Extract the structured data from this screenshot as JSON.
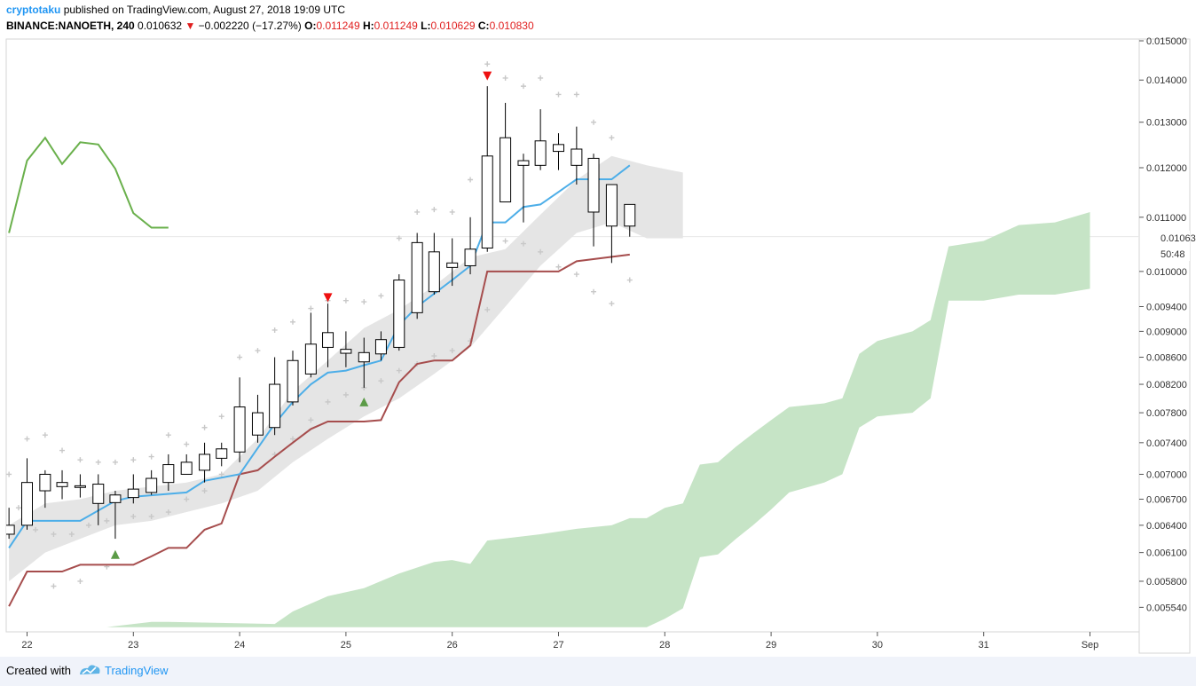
{
  "header": {
    "author": "cryptotaku",
    "published_text": "published on TradingView.com, August 27, 2018 19:09 UTC",
    "symbol": "BINANCE:NANOETH, 240",
    "last": "0.010632",
    "change": "−0.002220 (−17.27%)",
    "o_label": "O:",
    "o_value": "0.011249",
    "h_label": "H:",
    "h_value": "0.011249",
    "l_label": "L:",
    "l_value": "0.010629",
    "c_label": "C:",
    "c_value": "0.010830"
  },
  "footer": {
    "created_with": "Created with",
    "brand": "TradingView"
  },
  "price_label": {
    "price": "0.010632",
    "countdown": "50:48"
  },
  "colors": {
    "conversion": "#4daee8",
    "base": "#a64d4d",
    "lagging": "#6ab04c",
    "cloud_green": "#c6e4c6",
    "cloud_gray": "#e5e5e5",
    "down_marker": "#ee1111",
    "up_marker": "#5b9b47"
  },
  "chart_data": {
    "type": "candlestick",
    "interval": "4h",
    "x_ticks": [
      "22",
      "23",
      "24",
      "25",
      "26",
      "27",
      "28",
      "29",
      "30",
      "31",
      "Sep"
    ],
    "x_tick_positions": [
      22,
      23,
      24,
      25,
      26,
      27,
      28,
      29,
      30,
      31,
      32
    ],
    "y_ticks": [
      0.00554,
      0.0058,
      0.0061,
      0.0064,
      0.0067,
      0.007,
      0.0074,
      0.0078,
      0.0082,
      0.0086,
      0.009,
      0.0094,
      0.01,
      0.011,
      0.012,
      0.013,
      0.014,
      0.015
    ],
    "y_scale": "log",
    "ylim": [
      0.0053,
      0.0151
    ],
    "current_price": 0.010632,
    "candles": [
      {
        "t": 21.83,
        "o": 0.0063,
        "h": 0.0066,
        "l": 0.00625,
        "c": 0.0064
      },
      {
        "t": 22.0,
        "o": 0.0064,
        "h": 0.0072,
        "l": 0.00635,
        "c": 0.0069
      },
      {
        "t": 22.17,
        "o": 0.0068,
        "h": 0.00705,
        "l": 0.0066,
        "c": 0.007
      },
      {
        "t": 22.33,
        "o": 0.00685,
        "h": 0.00705,
        "l": 0.0067,
        "c": 0.0069
      },
      {
        "t": 22.5,
        "o": 0.00686,
        "h": 0.007,
        "l": 0.00672,
        "c": 0.00684
      },
      {
        "t": 22.67,
        "o": 0.00665,
        "h": 0.007,
        "l": 0.0064,
        "c": 0.00688
      },
      {
        "t": 22.83,
        "o": 0.00666,
        "h": 0.0068,
        "l": 0.00625,
        "c": 0.00675
      },
      {
        "t": 23.0,
        "o": 0.00672,
        "h": 0.007,
        "l": 0.00665,
        "c": 0.00682
      },
      {
        "t": 23.17,
        "o": 0.00678,
        "h": 0.00705,
        "l": 0.00675,
        "c": 0.00695
      },
      {
        "t": 23.33,
        "o": 0.0069,
        "h": 0.00725,
        "l": 0.0068,
        "c": 0.00712
      },
      {
        "t": 23.5,
        "o": 0.007,
        "h": 0.00725,
        "l": 0.007,
        "c": 0.00715
      },
      {
        "t": 23.67,
        "o": 0.00705,
        "h": 0.0074,
        "l": 0.0069,
        "c": 0.00725
      },
      {
        "t": 23.83,
        "o": 0.0072,
        "h": 0.0074,
        "l": 0.0071,
        "c": 0.00732
      },
      {
        "t": 24.0,
        "o": 0.00728,
        "h": 0.0083,
        "l": 0.00715,
        "c": 0.00788
      },
      {
        "t": 24.17,
        "o": 0.0075,
        "h": 0.00805,
        "l": 0.0074,
        "c": 0.0078
      },
      {
        "t": 24.33,
        "o": 0.0076,
        "h": 0.0086,
        "l": 0.0075,
        "c": 0.0082
      },
      {
        "t": 24.5,
        "o": 0.00795,
        "h": 0.0087,
        "l": 0.0079,
        "c": 0.00855
      },
      {
        "t": 24.67,
        "o": 0.00835,
        "h": 0.0093,
        "l": 0.0083,
        "c": 0.0088
      },
      {
        "t": 24.83,
        "o": 0.00875,
        "h": 0.00945,
        "l": 0.00845,
        "c": 0.00898
      },
      {
        "t": 25.0,
        "o": 0.00872,
        "h": 0.009,
        "l": 0.00845,
        "c": 0.00866
      },
      {
        "t": 25.17,
        "o": 0.00867,
        "h": 0.0089,
        "l": 0.00815,
        "c": 0.00853
      },
      {
        "t": 25.33,
        "o": 0.00865,
        "h": 0.009,
        "l": 0.00855,
        "c": 0.00887
      },
      {
        "t": 25.5,
        "o": 0.00875,
        "h": 0.00995,
        "l": 0.0087,
        "c": 0.00985
      },
      {
        "t": 25.67,
        "o": 0.0093,
        "h": 0.0107,
        "l": 0.0092,
        "c": 0.01052
      },
      {
        "t": 25.83,
        "o": 0.00965,
        "h": 0.0107,
        "l": 0.0096,
        "c": 0.01035
      },
      {
        "t": 26.0,
        "o": 0.01015,
        "h": 0.0106,
        "l": 0.00975,
        "c": 0.01007
      },
      {
        "t": 26.17,
        "o": 0.0101,
        "h": 0.011,
        "l": 0.00995,
        "c": 0.0104
      },
      {
        "t": 26.33,
        "o": 0.01042,
        "h": 0.01385,
        "l": 0.01035,
        "c": 0.01225
      },
      {
        "t": 26.5,
        "o": 0.0113,
        "h": 0.01345,
        "l": 0.0113,
        "c": 0.01265
      },
      {
        "t": 26.67,
        "o": 0.01215,
        "h": 0.0123,
        "l": 0.0109,
        "c": 0.01205
      },
      {
        "t": 26.83,
        "o": 0.01205,
        "h": 0.0133,
        "l": 0.01195,
        "c": 0.01258
      },
      {
        "t": 27.0,
        "o": 0.0125,
        "h": 0.01275,
        "l": 0.01195,
        "c": 0.01235
      },
      {
        "t": 27.17,
        "o": 0.0124,
        "h": 0.0129,
        "l": 0.01165,
        "c": 0.01205
      },
      {
        "t": 27.33,
        "o": 0.0122,
        "h": 0.0123,
        "l": 0.01045,
        "c": 0.0111
      },
      {
        "t": 27.5,
        "o": 0.01165,
        "h": 0.01165,
        "l": 0.01015,
        "c": 0.01083
      },
      {
        "t": 27.67,
        "o": 0.01125,
        "h": 0.01125,
        "l": 0.01063,
        "c": 0.01083
      }
    ],
    "conversion_line": [
      [
        21.83,
        0.00615
      ],
      [
        22.0,
        0.00645
      ],
      [
        22.5,
        0.00645
      ],
      [
        22.83,
        0.00668
      ],
      [
        23.0,
        0.00673
      ],
      [
        23.5,
        0.00678
      ],
      [
        23.67,
        0.00692
      ],
      [
        24.0,
        0.007
      ],
      [
        24.17,
        0.00733
      ],
      [
        24.33,
        0.00765
      ],
      [
        24.5,
        0.00795
      ],
      [
        24.67,
        0.0082
      ],
      [
        24.83,
        0.00837
      ],
      [
        25.0,
        0.0084
      ],
      [
        25.17,
        0.00848
      ],
      [
        25.33,
        0.00855
      ],
      [
        25.5,
        0.0091
      ],
      [
        25.67,
        0.0094
      ],
      [
        26.0,
        0.00985
      ],
      [
        26.17,
        0.0101
      ],
      [
        26.33,
        0.0109
      ],
      [
        26.5,
        0.0109
      ],
      [
        26.67,
        0.0112
      ],
      [
        26.83,
        0.01125
      ],
      [
        27.0,
        0.0115
      ],
      [
        27.17,
        0.01176
      ],
      [
        27.5,
        0.01176
      ],
      [
        27.67,
        0.01205
      ]
    ],
    "base_line": [
      [
        21.83,
        0.00555
      ],
      [
        22.0,
        0.0059
      ],
      [
        22.33,
        0.0059
      ],
      [
        22.5,
        0.00597
      ],
      [
        23.0,
        0.00597
      ],
      [
        23.17,
        0.00606
      ],
      [
        23.33,
        0.00615
      ],
      [
        23.5,
        0.00615
      ],
      [
        23.67,
        0.00635
      ],
      [
        23.83,
        0.00642
      ],
      [
        24.0,
        0.007
      ],
      [
        24.17,
        0.00705
      ],
      [
        24.33,
        0.00722
      ],
      [
        24.5,
        0.0074
      ],
      [
        24.67,
        0.00758
      ],
      [
        24.83,
        0.00768
      ],
      [
        25.17,
        0.00768
      ],
      [
        25.33,
        0.0077
      ],
      [
        25.5,
        0.00823
      ],
      [
        25.67,
        0.0085
      ],
      [
        25.83,
        0.00855
      ],
      [
        26.0,
        0.00855
      ],
      [
        26.17,
        0.00878
      ],
      [
        26.33,
        0.01
      ],
      [
        27.0,
        0.01
      ],
      [
        27.17,
        0.01018
      ],
      [
        27.67,
        0.0103
      ]
    ],
    "lagging_span": [
      [
        21.83,
        0.0107
      ],
      [
        22.0,
        0.01215
      ],
      [
        22.17,
        0.01265
      ],
      [
        22.33,
        0.01208
      ],
      [
        22.5,
        0.01255
      ],
      [
        22.67,
        0.0125
      ],
      [
        22.83,
        0.01198
      ],
      [
        23.0,
        0.01108
      ],
      [
        23.17,
        0.0108
      ],
      [
        23.33,
        0.0108
      ]
    ],
    "cloud_gray": [
      [
        21.83,
        0.0058,
        0.0064
      ],
      [
        22.17,
        0.0061,
        0.00665
      ],
      [
        22.5,
        0.00625,
        0.0067
      ],
      [
        22.83,
        0.0064,
        0.0068
      ],
      [
        23.17,
        0.00645,
        0.00685
      ],
      [
        23.5,
        0.00655,
        0.0069
      ],
      [
        23.83,
        0.00665,
        0.007
      ],
      [
        24.17,
        0.0068,
        0.00745
      ],
      [
        24.5,
        0.00715,
        0.0081
      ],
      [
        24.83,
        0.00745,
        0.00855
      ],
      [
        25.17,
        0.00775,
        0.00905
      ],
      [
        25.5,
        0.008,
        0.00935
      ],
      [
        25.83,
        0.00835,
        0.00975
      ],
      [
        26.17,
        0.00875,
        0.01025
      ],
      [
        26.5,
        0.0094,
        0.0104
      ],
      [
        26.83,
        0.0101,
        0.01105
      ],
      [
        27.17,
        0.0107,
        0.01175
      ],
      [
        27.5,
        0.0109,
        0.01225
      ],
      [
        27.83,
        0.0106,
        0.01205
      ],
      [
        28.17,
        0.0106,
        0.0119
      ]
    ],
    "cloud_green": [
      [
        22.75,
        0.00535,
        0.00535
      ],
      [
        23.17,
        0.00535,
        0.0054
      ],
      [
        23.33,
        0.00535,
        0.0054
      ],
      [
        24.33,
        0.00535,
        0.00538
      ],
      [
        24.5,
        0.00535,
        0.0055
      ],
      [
        24.83,
        0.00535,
        0.00565
      ],
      [
        25.17,
        0.00535,
        0.00573
      ],
      [
        25.5,
        0.00535,
        0.00588
      ],
      [
        25.83,
        0.00535,
        0.006
      ],
      [
        26.0,
        0.00535,
        0.00602
      ],
      [
        26.17,
        0.00535,
        0.00598
      ],
      [
        26.33,
        0.00535,
        0.00623
      ],
      [
        26.83,
        0.00535,
        0.0063
      ],
      [
        27.17,
        0.00535,
        0.00636
      ],
      [
        27.5,
        0.00535,
        0.0064
      ],
      [
        27.67,
        0.00535,
        0.00648
      ],
      [
        27.83,
        0.00535,
        0.00648
      ],
      [
        28.0,
        0.00543,
        0.0066
      ],
      [
        28.17,
        0.00553,
        0.00665
      ],
      [
        28.33,
        0.00605,
        0.00712
      ],
      [
        28.5,
        0.00608,
        0.00715
      ],
      [
        28.67,
        0.00625,
        0.00735
      ],
      [
        28.83,
        0.0064,
        0.00752
      ],
      [
        29.0,
        0.00658,
        0.0077
      ],
      [
        29.17,
        0.00678,
        0.00788
      ],
      [
        29.5,
        0.0069,
        0.00793
      ],
      [
        29.67,
        0.007,
        0.008
      ],
      [
        29.83,
        0.0076,
        0.00865
      ],
      [
        30.0,
        0.00775,
        0.00885
      ],
      [
        30.33,
        0.0078,
        0.009
      ],
      [
        30.5,
        0.008,
        0.00918
      ],
      [
        30.67,
        0.0095,
        0.01045
      ],
      [
        31.0,
        0.0095,
        0.01055
      ],
      [
        31.33,
        0.0096,
        0.01085
      ],
      [
        31.67,
        0.0096,
        0.0109
      ],
      [
        32.0,
        0.0097,
        0.0111
      ]
    ],
    "down_arrows": [
      [
        24.83,
        0.00955
      ],
      [
        26.33,
        0.0141
      ]
    ],
    "up_arrows": [
      [
        22.83,
        0.00608
      ],
      [
        25.17,
        0.00795
      ]
    ],
    "crosses": [
      [
        21.83,
        0.007
      ],
      [
        22.0,
        0.00745
      ],
      [
        22.17,
        0.0075
      ],
      [
        22.33,
        0.0073
      ],
      [
        22.5,
        0.00718
      ],
      [
        22.67,
        0.00715
      ],
      [
        22.83,
        0.00715
      ],
      [
        23.0,
        0.00718
      ],
      [
        23.17,
        0.00722
      ],
      [
        23.33,
        0.0075
      ],
      [
        23.5,
        0.00738
      ],
      [
        23.67,
        0.0076
      ],
      [
        23.83,
        0.00775
      ],
      [
        24.0,
        0.0086
      ],
      [
        24.17,
        0.0087
      ],
      [
        24.33,
        0.00902
      ],
      [
        24.5,
        0.00915
      ],
      [
        24.67,
        0.00937
      ],
      [
        24.83,
        0.0095
      ],
      [
        25.0,
        0.0095
      ],
      [
        25.17,
        0.00948
      ],
      [
        25.33,
        0.00958
      ],
      [
        25.5,
        0.0106
      ],
      [
        25.67,
        0.0111
      ],
      [
        25.83,
        0.01115
      ],
      [
        26.0,
        0.0111
      ],
      [
        26.17,
        0.01175
      ],
      [
        26.33,
        0.0144
      ],
      [
        26.5,
        0.01405
      ],
      [
        26.67,
        0.01385
      ],
      [
        26.83,
        0.01405
      ],
      [
        27.0,
        0.01365
      ],
      [
        27.17,
        0.01365
      ],
      [
        27.33,
        0.013
      ],
      [
        27.5,
        0.01265
      ],
      [
        21.92,
        0.0066
      ],
      [
        22.08,
        0.00635
      ],
      [
        22.25,
        0.0063
      ],
      [
        22.42,
        0.0063
      ],
      [
        22.58,
        0.0064
      ],
      [
        22.75,
        0.00645
      ],
      [
        23.0,
        0.0065
      ],
      [
        23.17,
        0.0065
      ],
      [
        23.33,
        0.00655
      ],
      [
        23.5,
        0.0067
      ],
      [
        23.67,
        0.0068
      ],
      [
        23.83,
        0.007
      ],
      [
        24.33,
        0.00725
      ],
      [
        24.5,
        0.00745
      ],
      [
        24.67,
        0.0077
      ],
      [
        24.83,
        0.00795
      ],
      [
        25.0,
        0.00805
      ],
      [
        25.17,
        0.00815
      ],
      [
        25.33,
        0.00825
      ],
      [
        25.5,
        0.0084
      ],
      [
        25.67,
        0.0085
      ],
      [
        25.83,
        0.00862
      ],
      [
        26.0,
        0.0087
      ],
      [
        26.17,
        0.00885
      ],
      [
        26.33,
        0.00935
      ],
      [
        26.5,
        0.01055
      ],
      [
        26.67,
        0.0105
      ],
      [
        26.83,
        0.01035
      ],
      [
        27.0,
        0.01008
      ],
      [
        27.17,
        0.00995
      ],
      [
        27.33,
        0.00965
      ],
      [
        27.5,
        0.00945
      ],
      [
        27.67,
        0.00985
      ],
      [
        22.25,
        0.00575
      ],
      [
        22.5,
        0.0058
      ],
      [
        22.75,
        0.00595
      ]
    ]
  }
}
